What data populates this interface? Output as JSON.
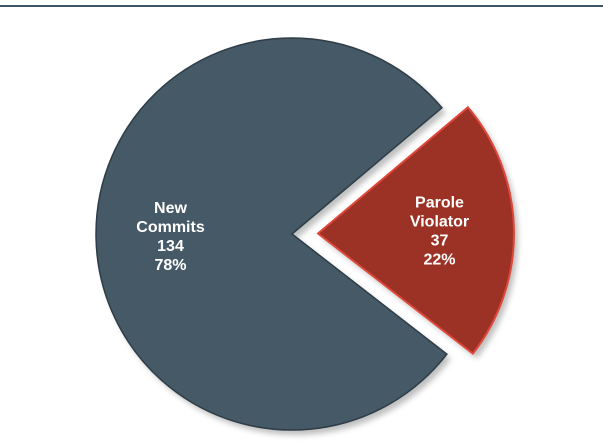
{
  "chart_data": {
    "type": "pie",
    "title": "",
    "slices": [
      {
        "label_lines": [
          "New",
          "Commits"
        ],
        "value": 134,
        "percent": "78%",
        "color": "#465967",
        "exploded": false
      },
      {
        "label_lines": [
          "Parole",
          "Violator"
        ],
        "value": 37,
        "percent": "22%",
        "color": "#9c3225",
        "exploded": true
      }
    ],
    "colors": {
      "rule": "#3b5466",
      "shadow": "#8a8a8a",
      "edge_dark": "#2e3d47",
      "edge_red": "#e0463a"
    }
  }
}
